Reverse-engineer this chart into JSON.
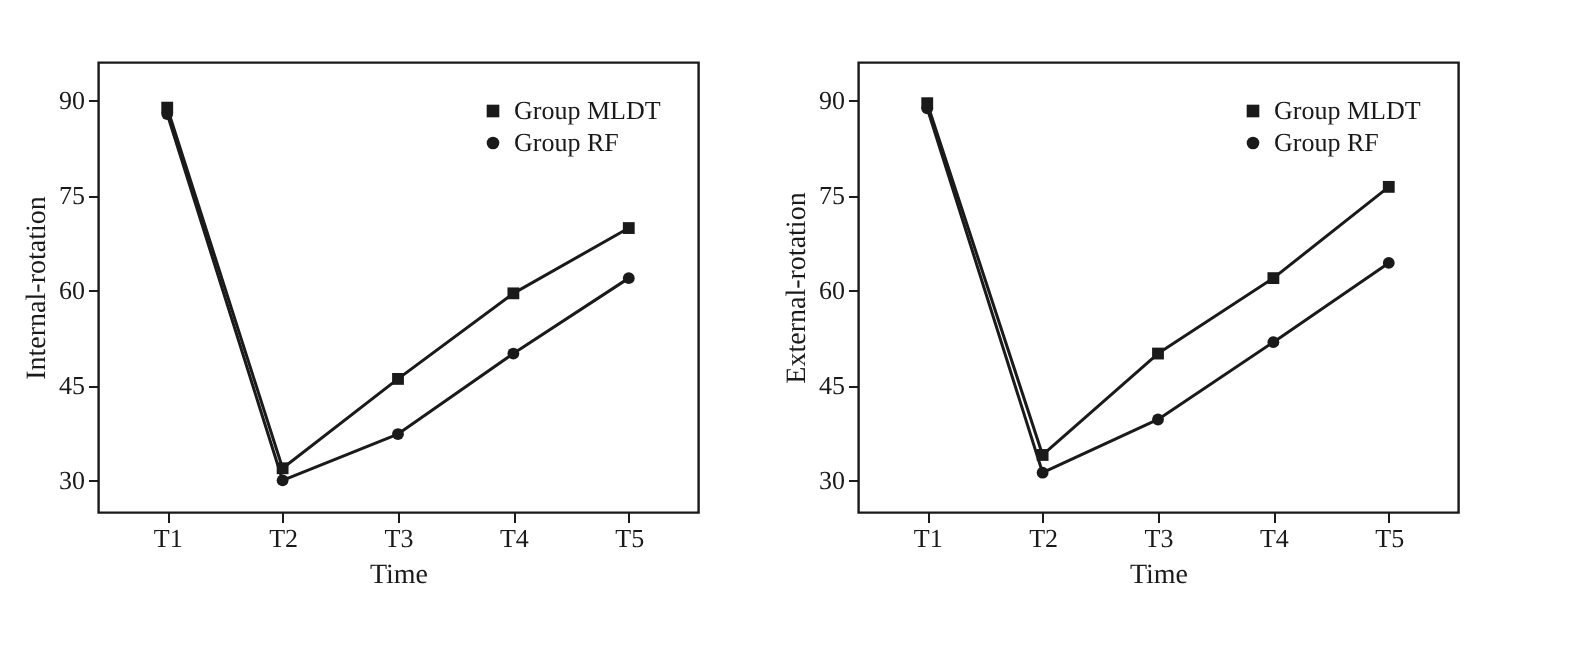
{
  "chart_data": [
    {
      "type": "line",
      "xlabel": "Time",
      "ylabel": "Internal-rotation",
      "categories": [
        "T1",
        "T2",
        "T3",
        "T4",
        "T5"
      ],
      "ylim": [
        25,
        96
      ],
      "yticks": [
        30,
        45,
        60,
        75,
        90
      ],
      "grid": false,
      "legend": "top right",
      "series": [
        {
          "name": "Group MLDT",
          "color": "#1a1a1a",
          "marker": "square",
          "values": [
            88.8,
            31.9,
            46.0,
            59.5,
            69.8
          ]
        },
        {
          "name": "Group RF",
          "color": "#1a1a1a",
          "marker": "circle",
          "values": [
            87.8,
            30.0,
            37.3,
            50.0,
            61.9
          ]
        }
      ]
    },
    {
      "type": "line",
      "xlabel": "Time",
      "ylabel": "External-rotation",
      "categories": [
        "T1",
        "T2",
        "T3",
        "T4",
        "T5"
      ],
      "ylim": [
        25,
        96
      ],
      "yticks": [
        30,
        45,
        60,
        75,
        90
      ],
      "grid": false,
      "legend": "top right",
      "series": [
        {
          "name": "Group MLDT",
          "color": "#1a1a1a",
          "marker": "square",
          "values": [
            89.5,
            34.0,
            50.0,
            61.9,
            76.3
          ]
        },
        {
          "name": "Group RF",
          "color": "#1a1a1a",
          "marker": "circle",
          "values": [
            88.7,
            31.2,
            39.6,
            51.8,
            64.3
          ]
        }
      ]
    }
  ]
}
